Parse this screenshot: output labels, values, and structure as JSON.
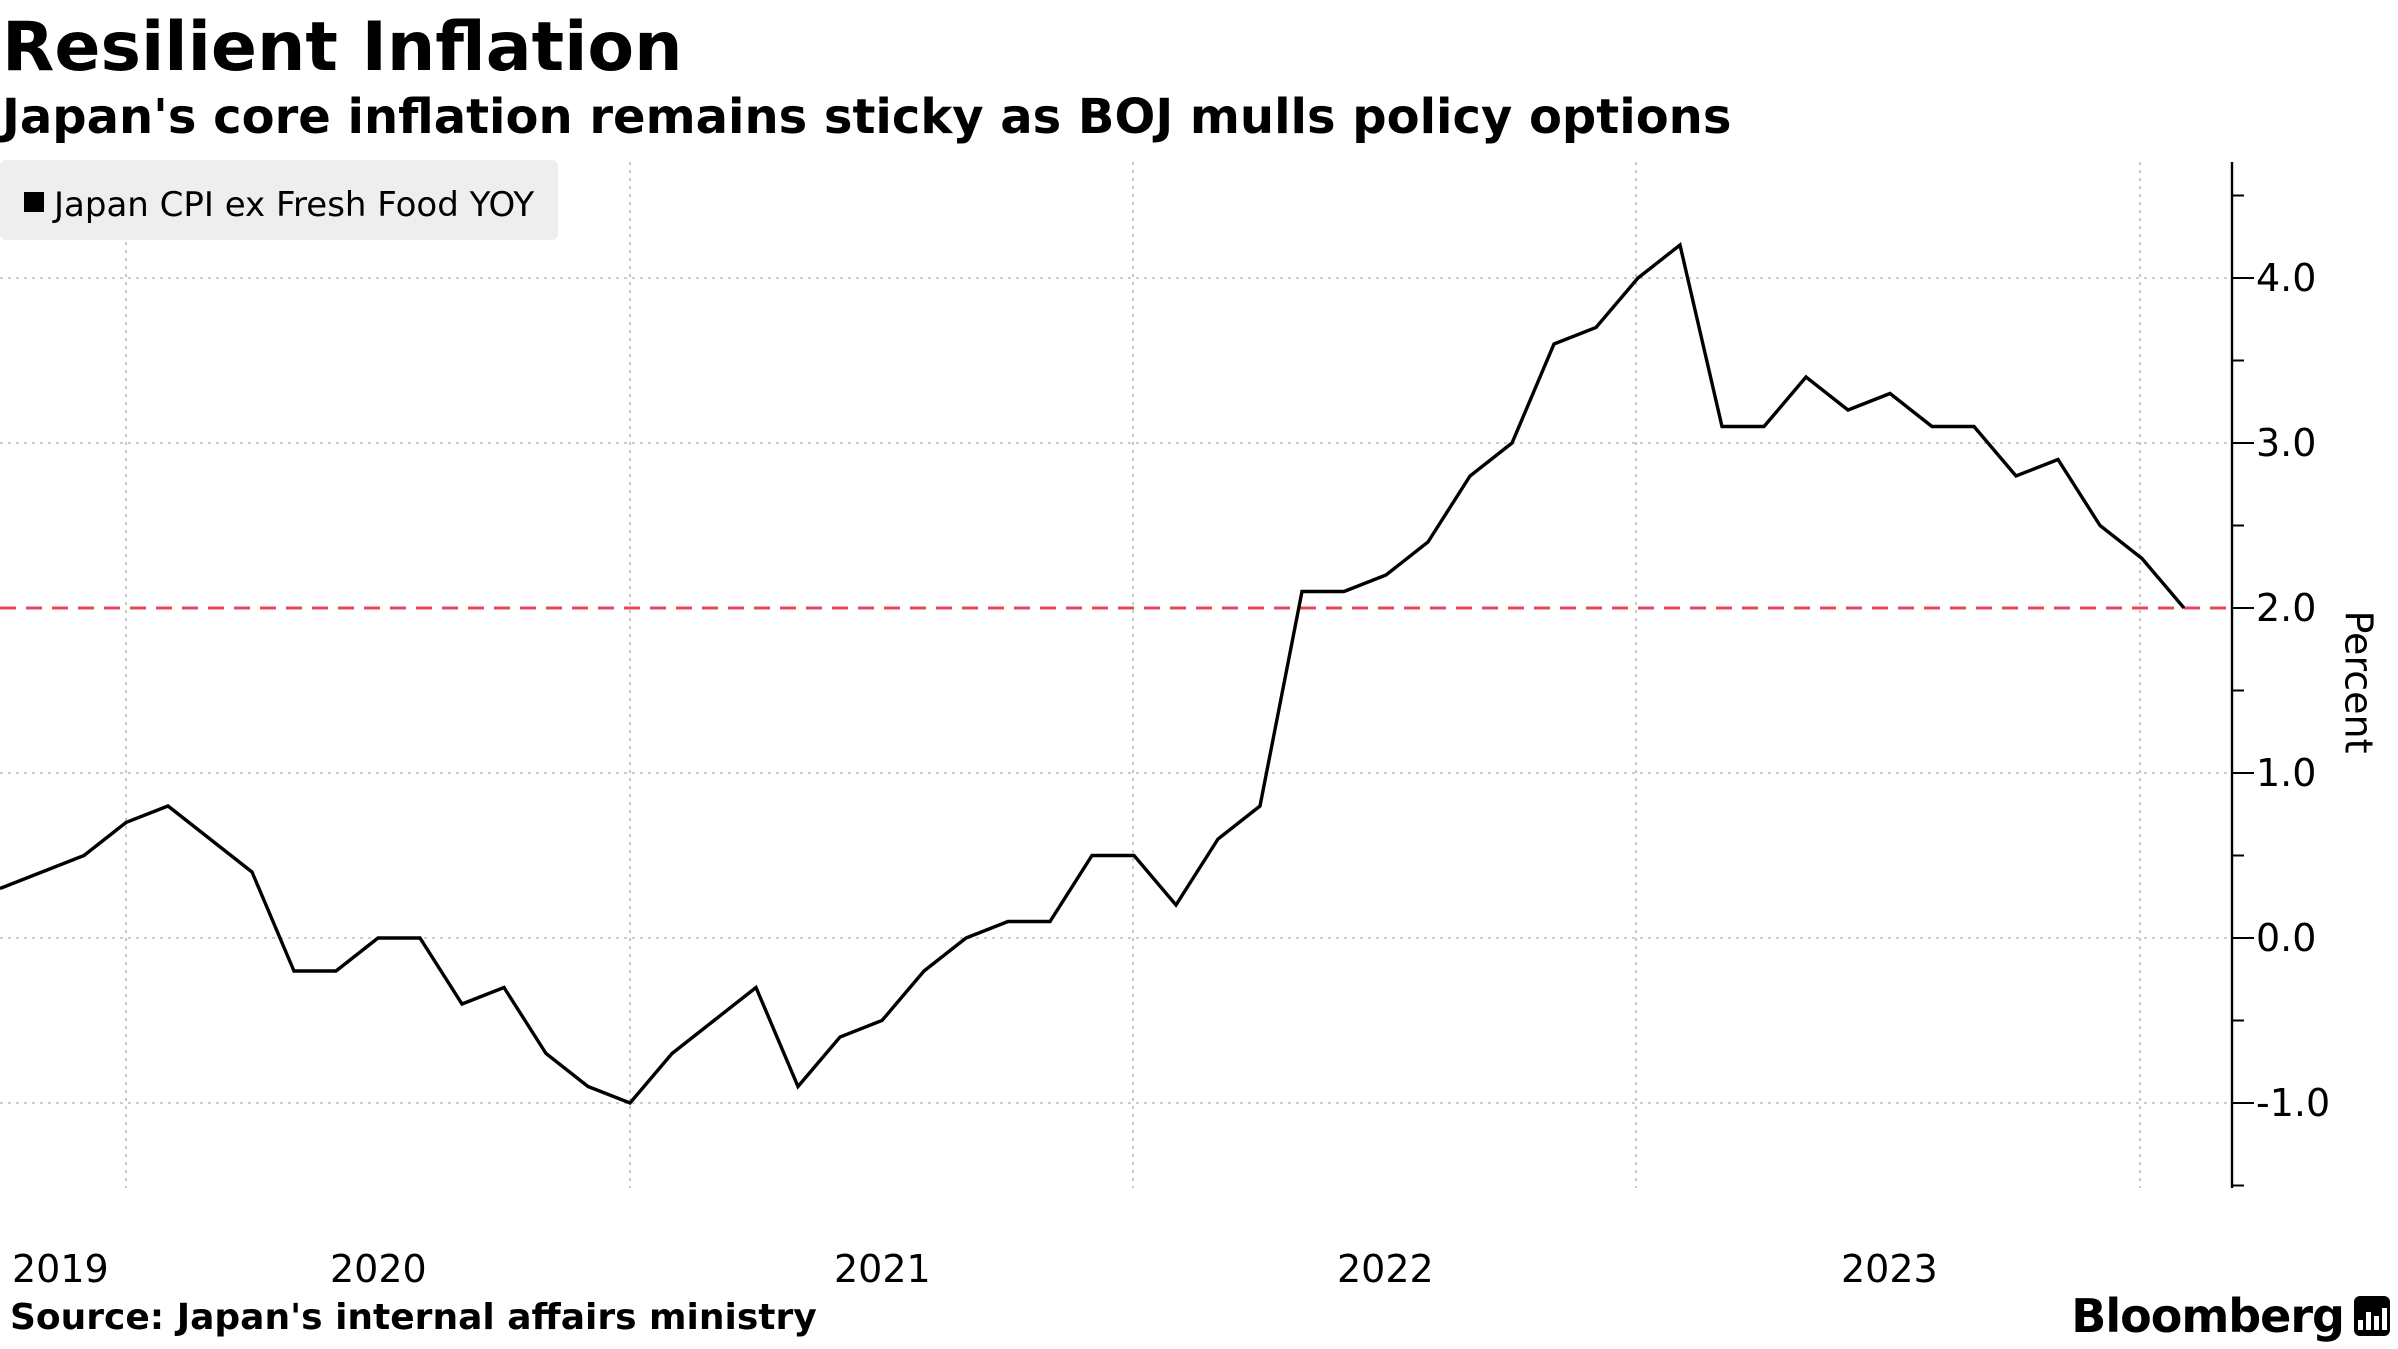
{
  "title": "Resilient Inflation",
  "subtitle": "Japan's core inflation remains sticky as BOJ mulls policy options",
  "source": "Source: Japan's internal affairs ministry",
  "brand": "Bloomberg",
  "chart_data": {
    "type": "line",
    "title": "Resilient Inflation",
    "subtitle": "Japan's core inflation remains sticky as BOJ mulls policy options",
    "xlabel": "",
    "ylabel": "Percent",
    "y_axis_side": "right",
    "ylim": [
      -1.5,
      4.7
    ],
    "y_ticks": [
      -1.0,
      0.0,
      1.0,
      2.0,
      3.0,
      4.0
    ],
    "y_tick_labels": [
      "-1.0",
      "0.0",
      "1.0",
      "2.0",
      "3.0",
      "4.0"
    ],
    "x_year_labels": [
      "2019",
      "2020",
      "2021",
      "2022",
      "2023"
    ],
    "grid": true,
    "legend": {
      "position": "top-left",
      "entries": [
        "Japan CPI ex Fresh Food YOY"
      ]
    },
    "reference_line": {
      "value": 2.0,
      "color": "#e8485c",
      "style": "dashed"
    },
    "colors": {
      "series": "#000000",
      "reference": "#e8485c",
      "grid": "#bbbbbb",
      "legend_bg": "#eeeeee"
    },
    "start": "2018-10",
    "series": [
      {
        "name": "Japan CPI ex Fresh Food YOY",
        "values": [
          0.3,
          0.4,
          0.5,
          0.7,
          0.8,
          0.6,
          0.4,
          -0.2,
          -0.2,
          0.0,
          0.0,
          -0.4,
          -0.3,
          -0.7,
          -0.9,
          -1.0,
          -0.7,
          -0.5,
          -0.3,
          -0.9,
          -0.6,
          -0.5,
          -0.2,
          0.0,
          0.1,
          0.1,
          0.5,
          0.5,
          0.2,
          0.6,
          0.8,
          2.1,
          2.1,
          2.2,
          2.4,
          2.8,
          3.0,
          3.6,
          3.7,
          4.0,
          4.2,
          3.1,
          3.1,
          3.4,
          3.2,
          3.3,
          3.1,
          3.1,
          2.8,
          2.9,
          2.5,
          2.3,
          2.0
        ]
      }
    ]
  }
}
